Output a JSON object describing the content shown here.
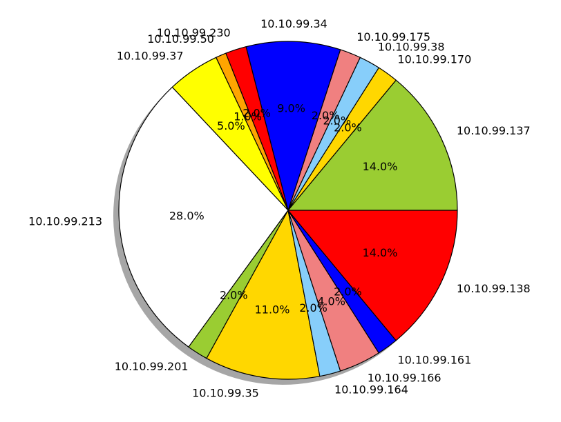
{
  "chart_data": {
    "type": "pie",
    "start_angle_deg": 0,
    "direction": "counterclockwise",
    "shadow": true,
    "slices": [
      {
        "label": "10.10.99.137",
        "value": 14.0,
        "pct_label": "14.0%",
        "color": "#9ACD32"
      },
      {
        "label": "10.10.99.170",
        "value": 2.0,
        "pct_label": "2.0%",
        "color": "#FFD700"
      },
      {
        "label": "10.10.99.38",
        "value": 2.0,
        "pct_label": "2.0%",
        "color": "#87CEFA"
      },
      {
        "label": "10.10.99.175",
        "value": 2.0,
        "pct_label": "2.0%",
        "color": "#F08080"
      },
      {
        "label": "10.10.99.34",
        "value": 9.0,
        "pct_label": "9.0%",
        "color": "#0000FF"
      },
      {
        "label": "10.10.99.230",
        "value": 2.0,
        "pct_label": "2.0%",
        "color": "#FF0000"
      },
      {
        "label": "10.10.99.50",
        "value": 1.0,
        "pct_label": "1.0%",
        "color": "#FFA500"
      },
      {
        "label": "10.10.99.37",
        "value": 5.0,
        "pct_label": "5.0%",
        "color": "#FFFF00"
      },
      {
        "label": "10.10.99.213",
        "value": 28.0,
        "pct_label": "28.0%",
        "color": "#FFFFFF"
      },
      {
        "label": "10.10.99.201",
        "value": 2.0,
        "pct_label": "2.0%",
        "color": "#9ACD32"
      },
      {
        "label": "10.10.99.35",
        "value": 11.0,
        "pct_label": "11.0%",
        "color": "#FFD700"
      },
      {
        "label": "10.10.99.164",
        "value": 2.0,
        "pct_label": "2.0%",
        "color": "#87CEFA"
      },
      {
        "label": "10.10.99.166",
        "value": 4.0,
        "pct_label": "4.0%",
        "color": "#F08080"
      },
      {
        "label": "10.10.99.161",
        "value": 2.0,
        "pct_label": "2.0%",
        "color": "#0000FF"
      },
      {
        "label": "10.10.99.138",
        "value": 14.0,
        "pct_label": "14.0%",
        "color": "#FF0000"
      }
    ]
  }
}
